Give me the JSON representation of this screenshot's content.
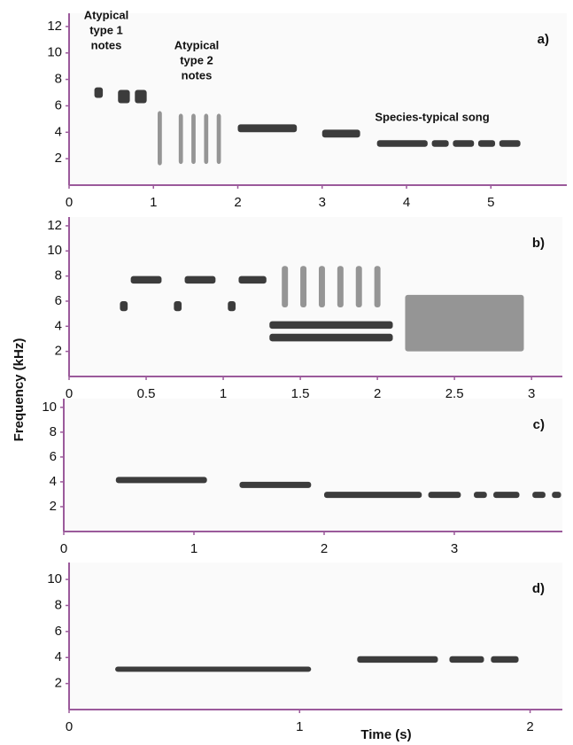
{
  "ylabel": "Frequency (kHz)",
  "xlabel": "Time (s)",
  "chart_data": [
    {
      "type": "spectrogram",
      "label": "a)",
      "xlim": [
        0,
        5.9
      ],
      "xticks": [
        0,
        1,
        2,
        3,
        4,
        5
      ],
      "ylim": [
        0,
        13
      ],
      "yticks": [
        2,
        4,
        6,
        8,
        10,
        12
      ],
      "annotations": [
        [
          "Atypical",
          "type 1",
          "notes"
        ],
        [
          "Atypical",
          "type 2",
          "notes"
        ],
        [
          "Species-typical song"
        ]
      ],
      "notes": [
        {
          "t0": 0.3,
          "t1": 0.4,
          "f0": 6.6,
          "f1": 7.4
        },
        {
          "t0": 0.58,
          "t1": 0.72,
          "f0": 6.2,
          "f1": 7.2
        },
        {
          "t0": 0.78,
          "t1": 0.92,
          "f0": 6.2,
          "f1": 7.2
        },
        {
          "t0": 1.05,
          "t1": 1.1,
          "f0": 1.5,
          "f1": 5.6
        },
        {
          "t0": 1.3,
          "t1": 1.35,
          "f0": 1.6,
          "f1": 5.4
        },
        {
          "t0": 1.45,
          "t1": 1.5,
          "f0": 1.6,
          "f1": 5.4
        },
        {
          "t0": 1.6,
          "t1": 1.65,
          "f0": 1.6,
          "f1": 5.4
        },
        {
          "t0": 1.75,
          "t1": 1.8,
          "f0": 1.6,
          "f1": 5.4
        },
        {
          "t0": 2.0,
          "t1": 2.7,
          "f0": 4.0,
          "f1": 4.6
        },
        {
          "t0": 3.0,
          "t1": 3.45,
          "f0": 3.6,
          "f1": 4.2
        },
        {
          "t0": 3.65,
          "t1": 4.25,
          "f0": 2.9,
          "f1": 3.4
        },
        {
          "t0": 4.3,
          "t1": 4.5,
          "f0": 2.9,
          "f1": 3.4
        },
        {
          "t0": 4.55,
          "t1": 4.8,
          "f0": 2.9,
          "f1": 3.4
        },
        {
          "t0": 4.85,
          "t1": 5.05,
          "f0": 2.9,
          "f1": 3.4
        },
        {
          "t0": 5.1,
          "t1": 5.35,
          "f0": 2.9,
          "f1": 3.4
        }
      ]
    },
    {
      "type": "spectrogram",
      "label": "b)",
      "xlim": [
        0,
        3.2
      ],
      "xticks": [
        0,
        0.5,
        1,
        1.5,
        2,
        2.5,
        3
      ],
      "ylim": [
        0,
        12.7
      ],
      "yticks": [
        2,
        4,
        6,
        8,
        10,
        12
      ],
      "notes": [
        {
          "t0": 0.33,
          "t1": 0.38,
          "f0": 5.2,
          "f1": 6.0
        },
        {
          "t0": 0.4,
          "t1": 0.6,
          "f0": 7.4,
          "f1": 8.0
        },
        {
          "t0": 0.68,
          "t1": 0.73,
          "f0": 5.2,
          "f1": 6.0
        },
        {
          "t0": 0.75,
          "t1": 0.95,
          "f0": 7.4,
          "f1": 8.0
        },
        {
          "t0": 1.03,
          "t1": 1.08,
          "f0": 5.2,
          "f1": 6.0
        },
        {
          "t0": 1.1,
          "t1": 1.28,
          "f0": 7.4,
          "f1": 8.0
        },
        {
          "t0": 1.38,
          "t1": 1.42,
          "f0": 5.5,
          "f1": 8.8
        },
        {
          "t0": 1.5,
          "t1": 1.54,
          "f0": 5.5,
          "f1": 8.8
        },
        {
          "t0": 1.62,
          "t1": 1.66,
          "f0": 5.5,
          "f1": 8.8
        },
        {
          "t0": 1.74,
          "t1": 1.78,
          "f0": 5.5,
          "f1": 8.8
        },
        {
          "t0": 1.86,
          "t1": 1.9,
          "f0": 5.5,
          "f1": 8.8
        },
        {
          "t0": 1.98,
          "t1": 2.02,
          "f0": 5.5,
          "f1": 8.8
        },
        {
          "t0": 1.3,
          "t1": 2.1,
          "f0": 3.8,
          "f1": 4.4
        },
        {
          "t0": 1.3,
          "t1": 2.1,
          "f0": 2.8,
          "f1": 3.4
        },
        {
          "t0": 2.18,
          "t1": 2.95,
          "f0": 2.0,
          "f1": 6.5
        }
      ]
    },
    {
      "type": "spectrogram",
      "label": "c)",
      "xlim": [
        0,
        3.83
      ],
      "xticks": [
        0,
        1,
        2,
        3
      ],
      "ylim": [
        0,
        10.7
      ],
      "yticks": [
        2,
        4,
        6,
        8,
        10
      ],
      "notes": [
        {
          "t0": 0.4,
          "t1": 1.1,
          "f0": 3.9,
          "f1": 4.4
        },
        {
          "t0": 1.35,
          "t1": 1.9,
          "f0": 3.5,
          "f1": 4.0
        },
        {
          "t0": 2.0,
          "t1": 2.75,
          "f0": 2.7,
          "f1": 3.2
        },
        {
          "t0": 2.8,
          "t1": 3.05,
          "f0": 2.7,
          "f1": 3.2
        },
        {
          "t0": 3.15,
          "t1": 3.25,
          "f0": 2.7,
          "f1": 3.2
        },
        {
          "t0": 3.3,
          "t1": 3.5,
          "f0": 2.7,
          "f1": 3.2
        },
        {
          "t0": 3.6,
          "t1": 3.7,
          "f0": 2.7,
          "f1": 3.2
        },
        {
          "t0": 3.75,
          "t1": 3.82,
          "f0": 2.7,
          "f1": 3.2
        }
      ]
    },
    {
      "type": "spectrogram",
      "label": "d)",
      "xlim": [
        0,
        2.14
      ],
      "xticks": [
        0,
        1,
        2
      ],
      "ylim": [
        0,
        11.3
      ],
      "yticks": [
        2,
        4,
        6,
        8,
        10
      ],
      "notes": [
        {
          "t0": 0.2,
          "t1": 1.05,
          "f0": 2.9,
          "f1": 3.3
        },
        {
          "t0": 1.25,
          "t1": 1.6,
          "f0": 3.6,
          "f1": 4.1
        },
        {
          "t0": 1.65,
          "t1": 1.8,
          "f0": 3.6,
          "f1": 4.1
        },
        {
          "t0": 1.83,
          "t1": 1.95,
          "f0": 3.6,
          "f1": 4.1
        }
      ]
    }
  ]
}
